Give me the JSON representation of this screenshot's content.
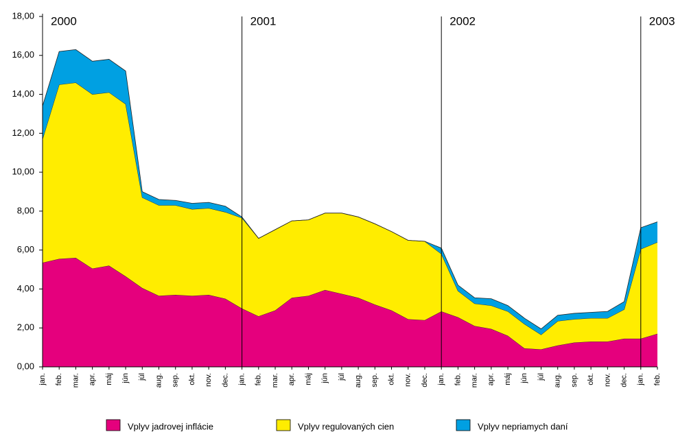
{
  "chart_data": {
    "type": "stacked_area",
    "categories": [
      "jan.",
      "feb.",
      "mar.",
      "apr.",
      "máj",
      "jún",
      "júl",
      "aug.",
      "sep.",
      "okt.",
      "nov.",
      "dec.",
      "jan.",
      "feb.",
      "mar.",
      "apr.",
      "máj",
      "jún",
      "júl",
      "aug.",
      "sep.",
      "okt.",
      "nov.",
      "dec.",
      "jan.",
      "feb.",
      "mar.",
      "apr.",
      "máj",
      "jún",
      "júl",
      "aug.",
      "sep.",
      "okt.",
      "nov.",
      "dec.",
      "jan.",
      "feb."
    ],
    "annotations": [
      "2000",
      "2001",
      "2002",
      "2003"
    ],
    "series": [
      {
        "name": "Vplyv jadrovej inflácie",
        "color": "#e5007d",
        "values": [
          5.35,
          5.55,
          5.6,
          5.05,
          5.2,
          4.65,
          4.05,
          3.65,
          3.7,
          3.65,
          3.7,
          3.5,
          3.0,
          2.6,
          2.9,
          3.55,
          3.65,
          3.95,
          3.75,
          3.55,
          3.2,
          2.9,
          2.45,
          2.4,
          2.85,
          2.55,
          2.1,
          1.95,
          1.6,
          0.95,
          0.9,
          1.1,
          1.25,
          1.3,
          1.3,
          1.45,
          1.45,
          1.7
        ]
      },
      {
        "name": "Vplyv regulovaných cien",
        "color": "#ffed00",
        "values": [
          6.35,
          8.95,
          9.0,
          8.95,
          8.9,
          8.85,
          4.65,
          4.65,
          4.6,
          4.45,
          4.45,
          4.45,
          4.65,
          4.0,
          4.15,
          3.95,
          3.9,
          3.95,
          4.15,
          4.15,
          4.15,
          4.05,
          4.05,
          4.05,
          2.95,
          1.35,
          1.15,
          1.2,
          1.25,
          1.25,
          0.75,
          1.25,
          1.2,
          1.2,
          1.2,
          1.5,
          4.6,
          4.7
        ]
      },
      {
        "name": "Vplyv nepriamych daní",
        "color": "#00a0e2",
        "values": [
          1.7,
          1.7,
          1.7,
          1.7,
          1.7,
          1.7,
          0.3,
          0.3,
          0.25,
          0.3,
          0.3,
          0.3,
          0.05,
          0,
          0,
          0,
          0,
          0,
          0,
          0,
          0,
          0,
          0,
          0,
          0.3,
          0.3,
          0.3,
          0.35,
          0.3,
          0.3,
          0.3,
          0.3,
          0.3,
          0.3,
          0.35,
          0.4,
          1.1,
          1.05
        ]
      }
    ],
    "ylim": [
      0,
      18
    ],
    "yticks": [
      {
        "value": 0,
        "label": "0,00"
      },
      {
        "value": 2,
        "label": "2,00"
      },
      {
        "value": 4,
        "label": "4,00"
      },
      {
        "value": 6,
        "label": "6,00"
      },
      {
        "value": 8,
        "label": "8,00"
      },
      {
        "value": 10,
        "label": "10,00"
      },
      {
        "value": 12,
        "label": "12,00"
      },
      {
        "value": 14,
        "label": "14,00"
      },
      {
        "value": 16,
        "label": "16,00"
      },
      {
        "value": 18,
        "label": "18,00"
      }
    ],
    "legend": "bottom"
  }
}
